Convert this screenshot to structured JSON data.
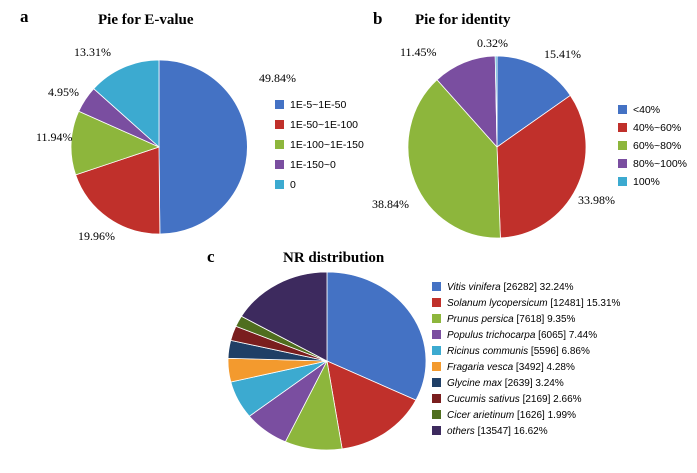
{
  "chart_data": [
    {
      "type": "pie",
      "panel": "a",
      "title": "Pie for E-value",
      "categories": [
        "1E-5~1E-50",
        "1E-50~1E-100",
        "1E-100~1E-150",
        "1E-150~0",
        "0"
      ],
      "values": [
        49.84,
        19.96,
        11.94,
        4.95,
        13.31
      ],
      "value_labels": [
        "49.84%",
        "19.96%",
        "11.94%",
        "4.95%",
        "13.31%"
      ],
      "colors": [
        "#4472c4",
        "#c0302b",
        "#8db63c",
        "#7a4ea0",
        "#3caad0"
      ],
      "legend_placement": "right"
    },
    {
      "type": "pie",
      "panel": "b",
      "title": "Pie for identity",
      "categories": [
        "<40%",
        "40%~60%",
        "60%~80%",
        "80%~100%",
        "100%"
      ],
      "values": [
        15.41,
        33.98,
        38.84,
        11.45,
        0.32
      ],
      "value_labels": [
        "15.41%",
        "33.98%",
        "38.84%",
        "11.45%",
        "0.32%"
      ],
      "colors": [
        "#4472c4",
        "#c0302b",
        "#8db63c",
        "#7a4ea0",
        "#3caad0"
      ],
      "legend_placement": "right"
    },
    {
      "type": "pie",
      "panel": "c",
      "title": "NR distribution",
      "categories": [
        {
          "species": "Vitis vinifera",
          "rest": " [26282] 32.24%",
          "italic": true
        },
        {
          "species": "Solanum lycopersicum",
          "rest": " [12481] 15.31%",
          "italic": true
        },
        {
          "species": "Prunus persica",
          "rest": " [7618] 9.35%",
          "italic": true
        },
        {
          "species": "Populus trichocarpa",
          "rest": " [6065] 7.44%",
          "italic": true
        },
        {
          "species": "Ricinus communis",
          "rest": " [5596] 6.86%",
          "italic": true
        },
        {
          "species": "Fragaria vesca",
          "rest": " [3492] 4.28%",
          "italic": true
        },
        {
          "species": "Glycine max",
          "rest": " [2639] 3.24%",
          "italic": true
        },
        {
          "species": "Cucumis sativus",
          "rest": " [2169] 2.66%",
          "italic": true
        },
        {
          "species": "Cicer arietinum",
          "rest": " [1626] 1.99%",
          "italic": true
        },
        {
          "species": "others",
          "rest": " [13547] 16.62%",
          "italic": true
        }
      ],
      "counts": [
        26282,
        12481,
        7618,
        6065,
        5596,
        3492,
        2639,
        2169,
        1626,
        13547
      ],
      "values": [
        32.24,
        15.31,
        9.35,
        7.44,
        6.86,
        4.28,
        3.24,
        2.66,
        1.99,
        16.62
      ],
      "colors": [
        "#4472c4",
        "#c0302b",
        "#8db63c",
        "#7a4ea0",
        "#3caad0",
        "#f39a2e",
        "#1f3f66",
        "#7a1e1e",
        "#4f6e1e",
        "#3d2a5e"
      ],
      "legend_placement": "right"
    }
  ]
}
